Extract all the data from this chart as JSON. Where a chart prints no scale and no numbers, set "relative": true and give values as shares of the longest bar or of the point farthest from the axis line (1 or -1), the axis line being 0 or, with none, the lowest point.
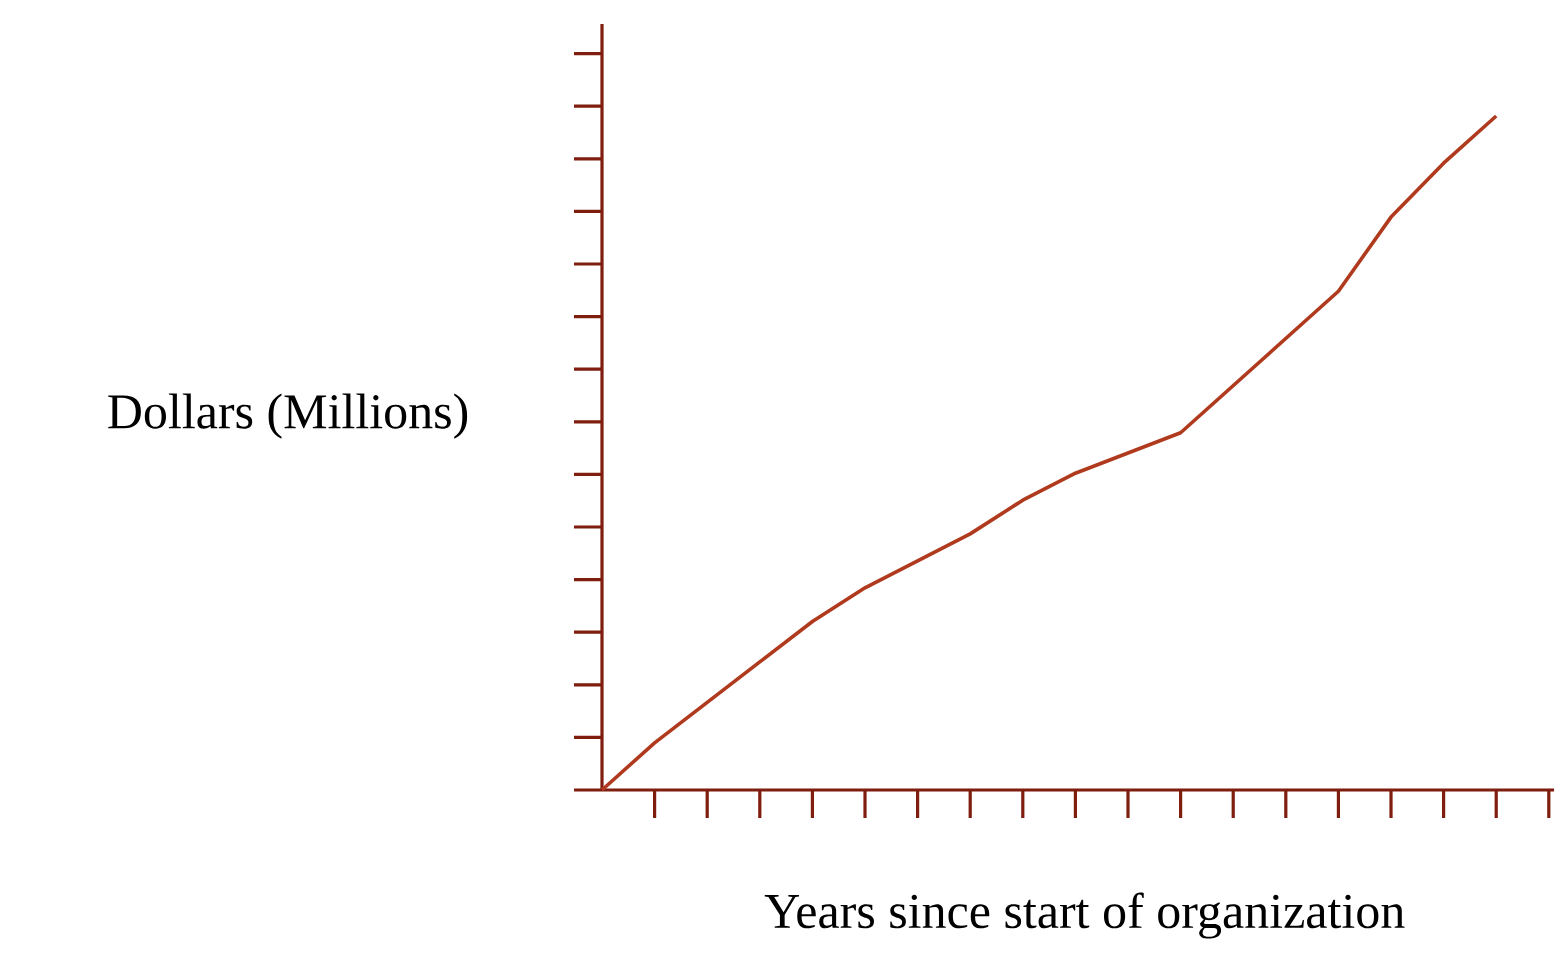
{
  "chart_data": {
    "type": "line",
    "relative": true,
    "xlabel": "Years since start of organization",
    "ylabel": "Dollars (Millions)",
    "categories": [
      null,
      null,
      null,
      null,
      null,
      null,
      null,
      null,
      null,
      null,
      null,
      null,
      null,
      null,
      null,
      null,
      null,
      null,
      null
    ],
    "values": [
      0,
      0.07,
      0.13,
      0.19,
      0.25,
      0.3,
      0.34,
      0.38,
      0.43,
      0.47,
      0.5,
      0.53,
      0.6,
      0.67,
      0.74,
      0.85,
      0.93,
      1.0,
      null
    ],
    "color": "#b03a1e",
    "marker": "none",
    "line_style": "solid",
    "grid": false
  }
}
